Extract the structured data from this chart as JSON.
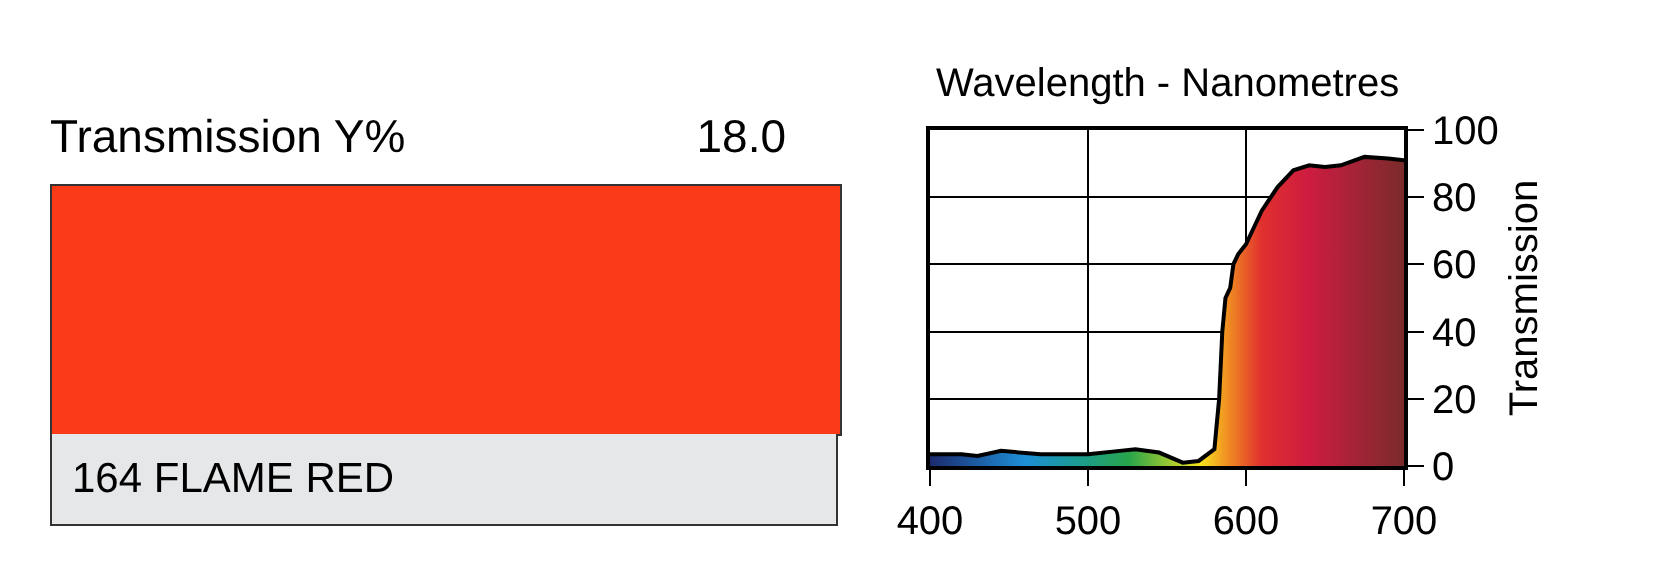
{
  "chart_data": [
    {
      "type": "other",
      "title": "Transmission Y%",
      "annotations": [
        "18.0",
        "164 FLAME RED"
      ]
    },
    {
      "type": "area",
      "xlabel": "Wavelength - Nanometres",
      "ylabel": "Transmission",
      "x": [
        400,
        420,
        430,
        445,
        470,
        500,
        520,
        530,
        545,
        560,
        570,
        580,
        583,
        585,
        587,
        590,
        592,
        595,
        600,
        610,
        620,
        630,
        640,
        650,
        660,
        675,
        690,
        700
      ],
      "series": [
        {
          "color": "#000000",
          "values": [
            3.5,
            3.5,
            3,
            4.5,
            3.5,
            3.5,
            4.5,
            5,
            4,
            1,
            1.5,
            5,
            20,
            40,
            50,
            53,
            60,
            63,
            66,
            76,
            83,
            88,
            89.5,
            89,
            89.5,
            92,
            91.5,
            91
          ]
        }
      ],
      "xlim": [
        400,
        700
      ],
      "ylim": [
        0,
        100
      ],
      "xticks": [
        400,
        500,
        600,
        700
      ],
      "yticks": [
        0,
        20,
        40,
        60,
        80,
        100
      ],
      "grid": true
    }
  ]
}
